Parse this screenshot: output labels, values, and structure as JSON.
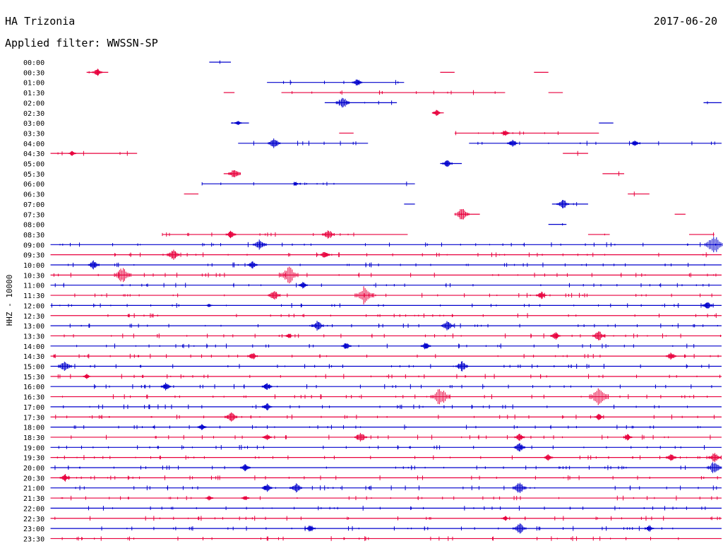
{
  "header": {
    "station": "HA Trizonia",
    "date": "2017-06-20",
    "filter": "Applied filter: WWSSN-SP"
  },
  "chart_data": {
    "type": "line",
    "title": "HA Trizonia",
    "subtitle": "Applied filter: WWSSN-SP",
    "ylabel": "HHZ - 10000",
    "xlabel": "",
    "colors": [
      "#0000cc",
      "#e8003d"
    ],
    "time_labels": [
      "00:00",
      "00:30",
      "01:00",
      "01:30",
      "02:00",
      "02:30",
      "03:00",
      "03:30",
      "04:00",
      "04:30",
      "05:00",
      "05:30",
      "06:00",
      "06:30",
      "07:00",
      "07:30",
      "08:00",
      "08:30",
      "09:00",
      "09:30",
      "10:00",
      "10:30",
      "11:00",
      "11:30",
      "12:00",
      "12:30",
      "13:00",
      "13:30",
      "14:00",
      "14:30",
      "15:00",
      "15:30",
      "16:00",
      "16:30",
      "17:00",
      "17:30",
      "18:00",
      "18:30",
      "19:00",
      "19:30",
      "20:00",
      "20:30",
      "21:00",
      "21:30",
      "22:00",
      "22:30",
      "23:00",
      "23:30"
    ],
    "trace_segments": [
      [
        [
          0.29,
          0.32
        ]
      ],
      [
        [
          0.12,
          0.15
        ],
        [
          0.61,
          0.63
        ],
        [
          0.74,
          0.76
        ]
      ],
      [
        [
          0.37,
          0.56
        ]
      ],
      [
        [
          0.31,
          0.325
        ],
        [
          0.39,
          0.7
        ],
        [
          0.76,
          0.78
        ]
      ],
      [
        [
          0.45,
          0.55
        ],
        [
          0.975,
          1.0
        ]
      ],
      [
        [
          0.6,
          0.615
        ]
      ],
      [
        [
          0.32,
          0.345
        ],
        [
          0.83,
          0.85
        ]
      ],
      [
        [
          0.47,
          0.49
        ],
        [
          0.63,
          0.83
        ]
      ],
      [
        [
          0.33,
          0.51
        ],
        [
          0.65,
          1.0
        ]
      ],
      [
        [
          0.07,
          0.19
        ],
        [
          0.78,
          0.815
        ]
      ],
      [
        [
          0.61,
          0.64
        ]
      ],
      [
        [
          0.31,
          0.33
        ],
        [
          0.835,
          0.865
        ]
      ],
      [
        [
          0.28,
          0.575
        ]
      ],
      [
        [
          0.255,
          0.275
        ],
        [
          0.87,
          0.9
        ]
      ],
      [
        [
          0.56,
          0.575
        ],
        [
          0.765,
          0.815
        ]
      ],
      [
        [
          0.635,
          0.665
        ],
        [
          0.935,
          0.95
        ]
      ],
      [
        [
          0.76,
          0.785
        ]
      ],
      [
        [
          0.225,
          0.565
        ],
        [
          0.815,
          0.845
        ],
        [
          0.955,
          0.99
        ]
      ],
      [
        [
          0.07,
          1.0
        ]
      ],
      [
        [
          0.07,
          1.0
        ]
      ],
      [
        [
          0.07,
          1.0
        ]
      ],
      [
        [
          0.07,
          1.0
        ]
      ],
      [
        [
          0.07,
          1.0
        ]
      ],
      [
        [
          0.07,
          1.0
        ]
      ],
      [
        [
          0.07,
          1.0
        ]
      ],
      [
        [
          0.07,
          1.0
        ]
      ],
      [
        [
          0.07,
          1.0
        ]
      ],
      [
        [
          0.07,
          1.0
        ]
      ],
      [
        [
          0.07,
          1.0
        ]
      ],
      [
        [
          0.07,
          1.0
        ]
      ],
      [
        [
          0.07,
          1.0
        ]
      ],
      [
        [
          0.07,
          1.0
        ]
      ],
      [
        [
          0.07,
          1.0
        ]
      ],
      [
        [
          0.07,
          1.0
        ]
      ],
      [
        [
          0.07,
          1.0
        ]
      ],
      [
        [
          0.07,
          1.0
        ]
      ],
      [
        [
          0.07,
          1.0
        ]
      ],
      [
        [
          0.07,
          1.0
        ]
      ],
      [
        [
          0.07,
          1.0
        ]
      ],
      [
        [
          0.07,
          1.0
        ]
      ],
      [
        [
          0.07,
          1.0
        ]
      ],
      [
        [
          0.07,
          1.0
        ]
      ],
      [
        [
          0.07,
          1.0
        ]
      ],
      [
        [
          0.07,
          1.0
        ]
      ],
      [
        [
          0.07,
          1.0
        ]
      ],
      [
        [
          0.07,
          1.0
        ]
      ],
      [
        [
          0.07,
          1.0
        ]
      ],
      [
        [
          0.07,
          1.0
        ]
      ]
    ],
    "events": [
      [],
      [
        [
          0.135,
          6
        ]
      ],
      [
        [
          0.495,
          6
        ]
      ],
      [],
      [
        [
          0.475,
          9
        ]
      ],
      [
        [
          0.605,
          5
        ]
      ],
      [
        [
          0.33,
          4
        ]
      ],
      [
        [
          0.7,
          5
        ]
      ],
      [
        [
          0.38,
          8
        ],
        [
          0.71,
          6
        ],
        [
          0.88,
          5
        ]
      ],
      [
        [
          0.1,
          4
        ]
      ],
      [
        [
          0.62,
          6
        ]
      ],
      [
        [
          0.325,
          8
        ]
      ],
      [
        [
          0.41,
          3
        ]
      ],
      [],
      [
        [
          0.78,
          8
        ]
      ],
      [
        [
          0.64,
          10
        ]
      ],
      [],
      [
        [
          0.32,
          6
        ],
        [
          0.455,
          8
        ]
      ],
      [
        [
          0.36,
          9
        ],
        [
          0.99,
          14
        ]
      ],
      [
        [
          0.24,
          8
        ],
        [
          0.45,
          6
        ]
      ],
      [
        [
          0.13,
          7
        ],
        [
          0.35,
          6
        ]
      ],
      [
        [
          0.17,
          12
        ],
        [
          0.4,
          14
        ]
      ],
      [
        [
          0.42,
          5
        ]
      ],
      [
        [
          0.38,
          8
        ],
        [
          0.505,
          14
        ],
        [
          0.75,
          6
        ]
      ],
      [
        [
          0.29,
          3
        ],
        [
          0.98,
          6
        ]
      ],
      [],
      [
        [
          0.44,
          8
        ],
        [
          0.62,
          8
        ]
      ],
      [
        [
          0.4,
          4
        ],
        [
          0.77,
          6
        ],
        [
          0.83,
          8
        ]
      ],
      [
        [
          0.48,
          6
        ],
        [
          0.59,
          6
        ]
      ],
      [
        [
          0.35,
          6
        ],
        [
          0.93,
          6
        ]
      ],
      [
        [
          0.09,
          9
        ],
        [
          0.64,
          8
        ]
      ],
      [
        [
          0.12,
          4
        ]
      ],
      [
        [
          0.23,
          6
        ],
        [
          0.37,
          6
        ]
      ],
      [
        [
          0.61,
          14
        ],
        [
          0.83,
          14
        ]
      ],
      [
        [
          0.37,
          6
        ]
      ],
      [
        [
          0.32,
          8
        ],
        [
          0.83,
          5
        ]
      ],
      [
        [
          0.28,
          5
        ]
      ],
      [
        [
          0.37,
          5
        ],
        [
          0.5,
          8
        ],
        [
          0.72,
          6
        ],
        [
          0.87,
          5
        ]
      ],
      [
        [
          0.72,
          7
        ]
      ],
      [
        [
          0.76,
          5
        ],
        [
          0.93,
          6
        ],
        [
          0.99,
          8
        ]
      ],
      [
        [
          0.34,
          6
        ],
        [
          0.99,
          10
        ]
      ],
      [
        [
          0.09,
          6
        ]
      ],
      [
        [
          0.37,
          6
        ],
        [
          0.41,
          8
        ],
        [
          0.72,
          9
        ]
      ],
      [
        [
          0.29,
          4
        ],
        [
          0.34,
          4
        ]
      ],
      [],
      [
        [
          0.7,
          4
        ]
      ],
      [
        [
          0.43,
          6
        ],
        [
          0.72,
          9
        ],
        [
          0.9,
          5
        ]
      ],
      []
    ]
  }
}
